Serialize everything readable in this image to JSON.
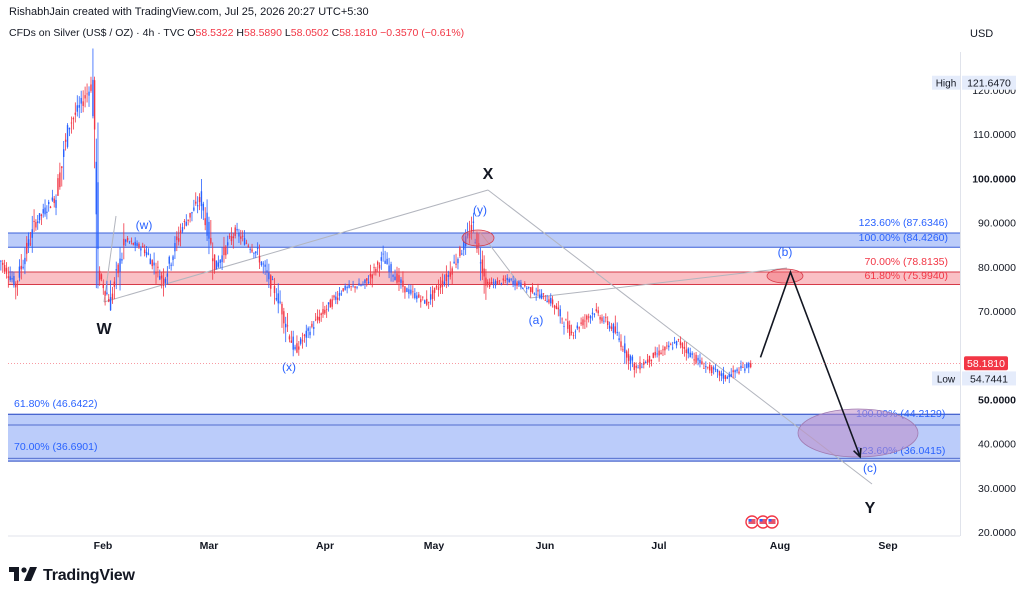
{
  "header": {
    "attribution": "RishabhJain created with TradingView.com, Jul 25, 2026 20:27 UTC+5:30",
    "symbol": "CFDs on Silver (US$ / OZ) · 4h · TVC",
    "ohlc": [
      {
        "key": "O",
        "value": "58.5322"
      },
      {
        "key": "H",
        "value": "58.5890"
      },
      {
        "key": "L",
        "value": "58.0502"
      },
      {
        "key": "C",
        "value": "58.1810"
      }
    ],
    "change": "−0.3570 (−0.61%)"
  },
  "currency": "USD",
  "brand": "TradingView",
  "colors": {
    "up": "#2962ff",
    "down": "#f23645",
    "blue_zone": "#a9bef7",
    "red_zone": "#f7b9bd",
    "label_blue": "#2962ff",
    "label_red": "#f23645",
    "wave_line": "#131722",
    "trend_line": "#b2b5be"
  },
  "price_badges": [
    {
      "tag": "High",
      "value": "121.6470",
      "price": 121.647
    },
    {
      "tag": "Low",
      "value": "54.7441",
      "price": 54.7441
    },
    {
      "tag": "",
      "value": "58.1810",
      "price": 58.181,
      "current": true
    }
  ],
  "chart_data": {
    "type": "candlestick",
    "instrument": "CFDs on Silver (US$ / OZ)",
    "timeframe": "4h",
    "x_ticks": [
      "Feb",
      "Mar",
      "Apr",
      "May",
      "Jun",
      "Jul",
      "Aug",
      "Sep"
    ],
    "y_ticks": [
      "20.0000",
      "30.0000",
      "40.0000",
      "50.0000",
      "60.0000",
      "70.0000",
      "80.0000",
      "90.0000",
      "100.0000",
      "110.0000",
      "120.0000"
    ],
    "y_range": [
      19,
      127
    ],
    "grid": false,
    "price_path": [
      {
        "x": "Jan 01",
        "y": 82
      },
      {
        "x": "Jan 06",
        "y": 76
      },
      {
        "x": "Jan 12",
        "y": 90
      },
      {
        "x": "Jan 18",
        "y": 96
      },
      {
        "x": "Jan 22",
        "y": 112
      },
      {
        "x": "Jan 29",
        "y": 121.6
      },
      {
        "x": "Jan 31",
        "y": 78
      },
      {
        "x": "Feb 03",
        "y": 72
      },
      {
        "x": "Feb 07",
        "y": 86
      },
      {
        "x": "Feb 12",
        "y": 84
      },
      {
        "x": "Feb 17",
        "y": 77
      },
      {
        "x": "Feb 22",
        "y": 89
      },
      {
        "x": "Feb 27",
        "y": 95.5
      },
      {
        "x": "Mar 03",
        "y": 80
      },
      {
        "x": "Mar 08",
        "y": 88
      },
      {
        "x": "Mar 14",
        "y": 83
      },
      {
        "x": "Mar 20",
        "y": 72
      },
      {
        "x": "Mar 24",
        "y": 61
      },
      {
        "x": "Mar 30",
        "y": 68
      },
      {
        "x": "Apr 06",
        "y": 75
      },
      {
        "x": "Apr 12",
        "y": 76
      },
      {
        "x": "Apr 17",
        "y": 82
      },
      {
        "x": "Apr 23",
        "y": 75
      },
      {
        "x": "Apr 29",
        "y": 72
      },
      {
        "x": "May 05",
        "y": 78
      },
      {
        "x": "May 12",
        "y": 89
      },
      {
        "x": "May 16",
        "y": 76
      },
      {
        "x": "May 22",
        "y": 77
      },
      {
        "x": "May 28",
        "y": 75
      },
      {
        "x": "Jun 03",
        "y": 72
      },
      {
        "x": "Jun 08",
        "y": 65
      },
      {
        "x": "Jun 14",
        "y": 70
      },
      {
        "x": "Jun 19",
        "y": 66
      },
      {
        "x": "Jun 25",
        "y": 57
      },
      {
        "x": "Jun 30",
        "y": 60
      },
      {
        "x": "Jul 06",
        "y": 63
      },
      {
        "x": "Jul 12",
        "y": 58
      },
      {
        "x": "Jul 18",
        "y": 55
      },
      {
        "x": "Jul 25",
        "y": 58.18
      }
    ],
    "zones": [
      {
        "name": "upper-blue",
        "top": 87.6346,
        "bottom": 84.426,
        "color": "blue",
        "labels": [
          "123.60% (87.6346)",
          "100.00% (84.4260)"
        ]
      },
      {
        "name": "upper-red",
        "top": 78.8135,
        "bottom": 75.994,
        "color": "red",
        "labels": [
          "70.00% (78.8135)",
          "61.80% (75.9940)"
        ]
      },
      {
        "name": "lower-blue",
        "top": 46.6422,
        "bottom": 36.0415,
        "color": "blue",
        "labels": [
          "61.80% (46.6422)",
          "70.00% (36.6901)",
          "100.00% (44.2129)",
          "123.60% (36.0415)"
        ]
      }
    ],
    "fib_lines": [
      46.6422,
      44.2129,
      36.6901,
      36.0415
    ],
    "wave_labels": [
      {
        "text": "W",
        "style": "major"
      },
      {
        "text": "X",
        "style": "major"
      },
      {
        "text": "Y",
        "style": "major"
      },
      {
        "text": "(w)",
        "style": "minor"
      },
      {
        "text": "(x)",
        "style": "minor"
      },
      {
        "text": "(y)",
        "style": "minor"
      },
      {
        "text": "(a)",
        "style": "minor"
      },
      {
        "text": "(b)",
        "style": "minor"
      },
      {
        "text": "(c)",
        "style": "minor"
      }
    ],
    "projection": [
      {
        "x": "Jul 27",
        "y": 59.5
      },
      {
        "x": "Aug 04",
        "y": 78.8
      },
      {
        "x": "Aug 24",
        "y": 37
      }
    ]
  }
}
